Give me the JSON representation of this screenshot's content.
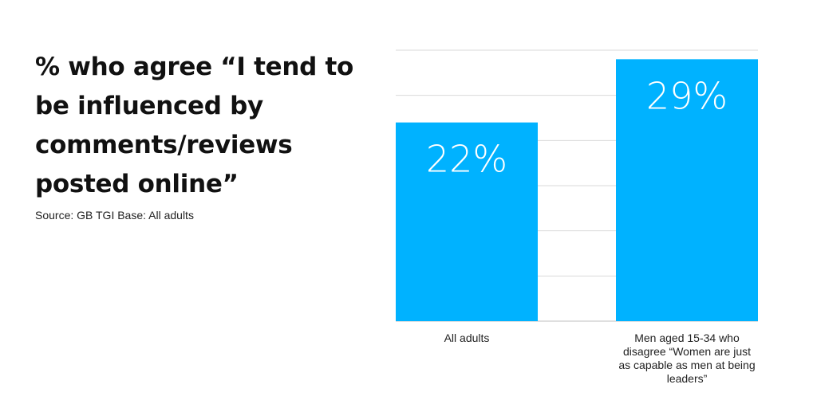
{
  "title": "% who agree “I tend to be influenced by comments/reviews posted online”",
  "source": "Source: GB TGI Base: All adults",
  "colors": {
    "bar": "#00b2ff",
    "grid": "#d9d9d9",
    "text": "#111111"
  },
  "chart_data": {
    "type": "bar",
    "title": "% who agree “I tend to be influenced by comments/reviews posted online”",
    "categories": [
      "All adults",
      "Men aged 15-34 who disagree “Women are just as capable as men at being leaders”"
    ],
    "values": [
      22,
      29
    ],
    "value_labels": [
      "22%",
      "29%"
    ],
    "ylim": [
      0,
      30
    ],
    "grid": true,
    "xlabel": "",
    "ylabel": ""
  }
}
